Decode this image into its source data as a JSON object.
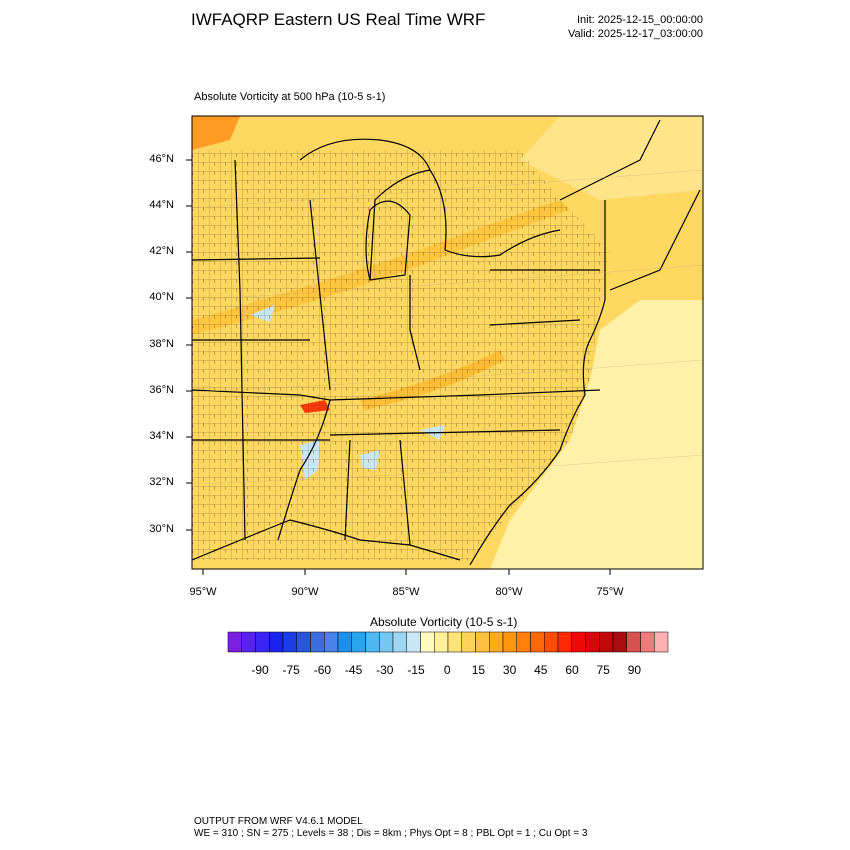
{
  "header": {
    "title": "IWFAQRP Eastern US Real Time WRF",
    "init": "Init: 2025-12-15_00:00:00",
    "valid": "Valid: 2025-12-17_03:00:00"
  },
  "field": {
    "title": "Absolute Vorticity at 500 hPa   (10-5 s-1)"
  },
  "axes": {
    "lat_labels": [
      "46°N",
      "44°N",
      "42°N",
      "40°N",
      "38°N",
      "36°N",
      "34°N",
      "32°N",
      "30°N"
    ],
    "lon_labels": [
      "95°W",
      "90°W",
      "85°W",
      "80°W",
      "75°W"
    ]
  },
  "colorbar": {
    "title": "Absolute Vorticity  (10-5 s-1)",
    "labels": [
      "-90",
      "-75",
      "-60",
      "-45",
      "-30",
      "-15",
      "0",
      "15",
      "30",
      "45",
      "60",
      "75",
      "90"
    ],
    "colors": [
      "#7a1fe0",
      "#5a22f0",
      "#3a25f5",
      "#1a22f0",
      "#1d3ee6",
      "#2a55d8",
      "#3a6ee0",
      "#4a82e8",
      "#1e90e8",
      "#2aa5ec",
      "#4cb8f0",
      "#74c8f0",
      "#9ed6f2",
      "#c8e6f4",
      "#fff9c2",
      "#fff09a",
      "#ffe278",
      "#ffd25a",
      "#ffc040",
      "#ffab22",
      "#ff9610",
      "#ff7f0a",
      "#ff6806",
      "#ff4e04",
      "#ff2a02",
      "#f00808",
      "#d80808",
      "#c00a0a",
      "#a80c0c",
      "#d85050",
      "#f07a7a",
      "#ffb0b0"
    ]
  },
  "footer": {
    "line1": "OUTPUT FROM WRF V4.6.1 MODEL",
    "line2": "WE = 310 ; SN = 275 ; Levels = 38 ; Dis = 8km ; Phys Opt = 8 ; PBL Opt = 1 ; Cu Opt = 3"
  }
}
